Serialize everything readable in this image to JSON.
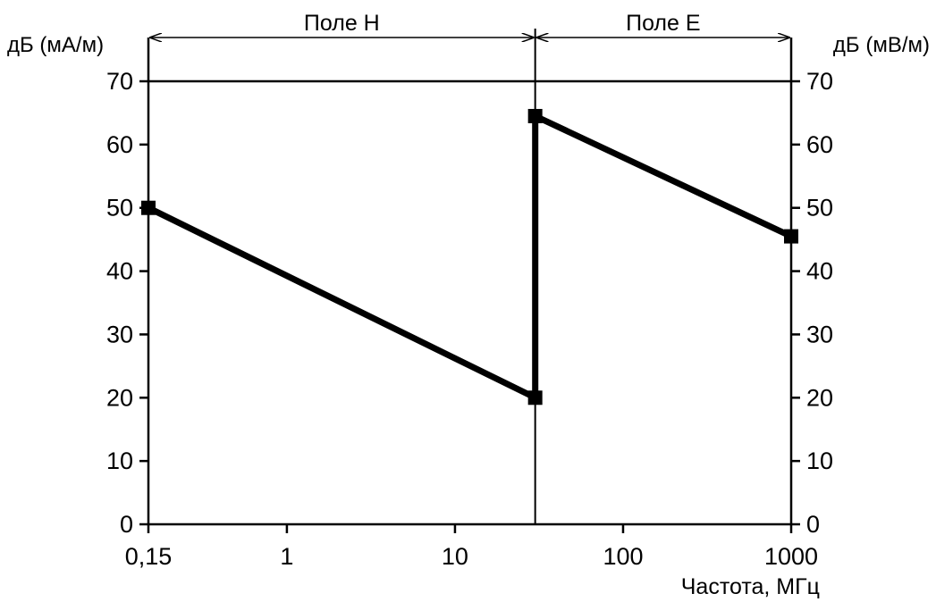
{
  "chart_data": {
    "type": "line",
    "x_scale": "log",
    "xlim": [
      0.15,
      1000
    ],
    "ylim": [
      0,
      70
    ],
    "y_ticks": [
      0,
      10,
      20,
      30,
      40,
      50,
      60,
      70
    ],
    "x_ticks": [
      {
        "value": 0.15,
        "label": "0,15"
      },
      {
        "value": 1,
        "label": "1"
      },
      {
        "value": 10,
        "label": "10"
      },
      {
        "value": 100,
        "label": "100"
      },
      {
        "value": 1000,
        "label": "1000"
      }
    ],
    "xlabel": "Частота, МГц",
    "ylabel_left": "дБ (мА/м)",
    "ylabel_right": "дБ (мВ/м)",
    "regions": [
      {
        "label": "Поле H",
        "from": 0.15,
        "to": 30
      },
      {
        "label": "Поле E",
        "from": 30,
        "to": 1000
      }
    ],
    "series": [
      {
        "points": [
          {
            "x": 0.15,
            "y": 50
          },
          {
            "x": 30,
            "y": 20
          },
          {
            "x": 30,
            "y": 64.5
          },
          {
            "x": 1000,
            "y": 45.5
          }
        ]
      }
    ],
    "grid": false,
    "legend": "none"
  }
}
